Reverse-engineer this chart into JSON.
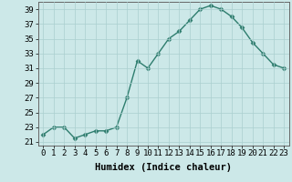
{
  "x": [
    0,
    1,
    2,
    3,
    4,
    5,
    6,
    7,
    8,
    9,
    10,
    11,
    12,
    13,
    14,
    15,
    16,
    17,
    18,
    19,
    20,
    21,
    22,
    23
  ],
  "y": [
    22,
    23,
    23,
    21.5,
    22,
    22.5,
    22.5,
    23,
    27,
    32,
    31,
    33,
    35,
    36,
    37.5,
    39,
    39.5,
    39,
    38,
    36.5,
    34.5,
    33,
    31.5,
    31
  ],
  "line_color": "#2e7d6e",
  "marker": "D",
  "markersize": 2.5,
  "linewidth": 1.0,
  "background_color": "#cce8e8",
  "grid_color": "#aacfcf",
  "xlabel": "Humidex (Indice chaleur)",
  "xlim": [
    -0.5,
    23.5
  ],
  "ylim": [
    20.5,
    40
  ],
  "yticks": [
    21,
    23,
    25,
    27,
    29,
    31,
    33,
    35,
    37,
    39
  ],
  "xticks": [
    0,
    1,
    2,
    3,
    4,
    5,
    6,
    7,
    8,
    9,
    10,
    11,
    12,
    13,
    14,
    15,
    16,
    17,
    18,
    19,
    20,
    21,
    22,
    23
  ],
  "xlabel_fontsize": 7.5,
  "tick_fontsize": 6.5
}
